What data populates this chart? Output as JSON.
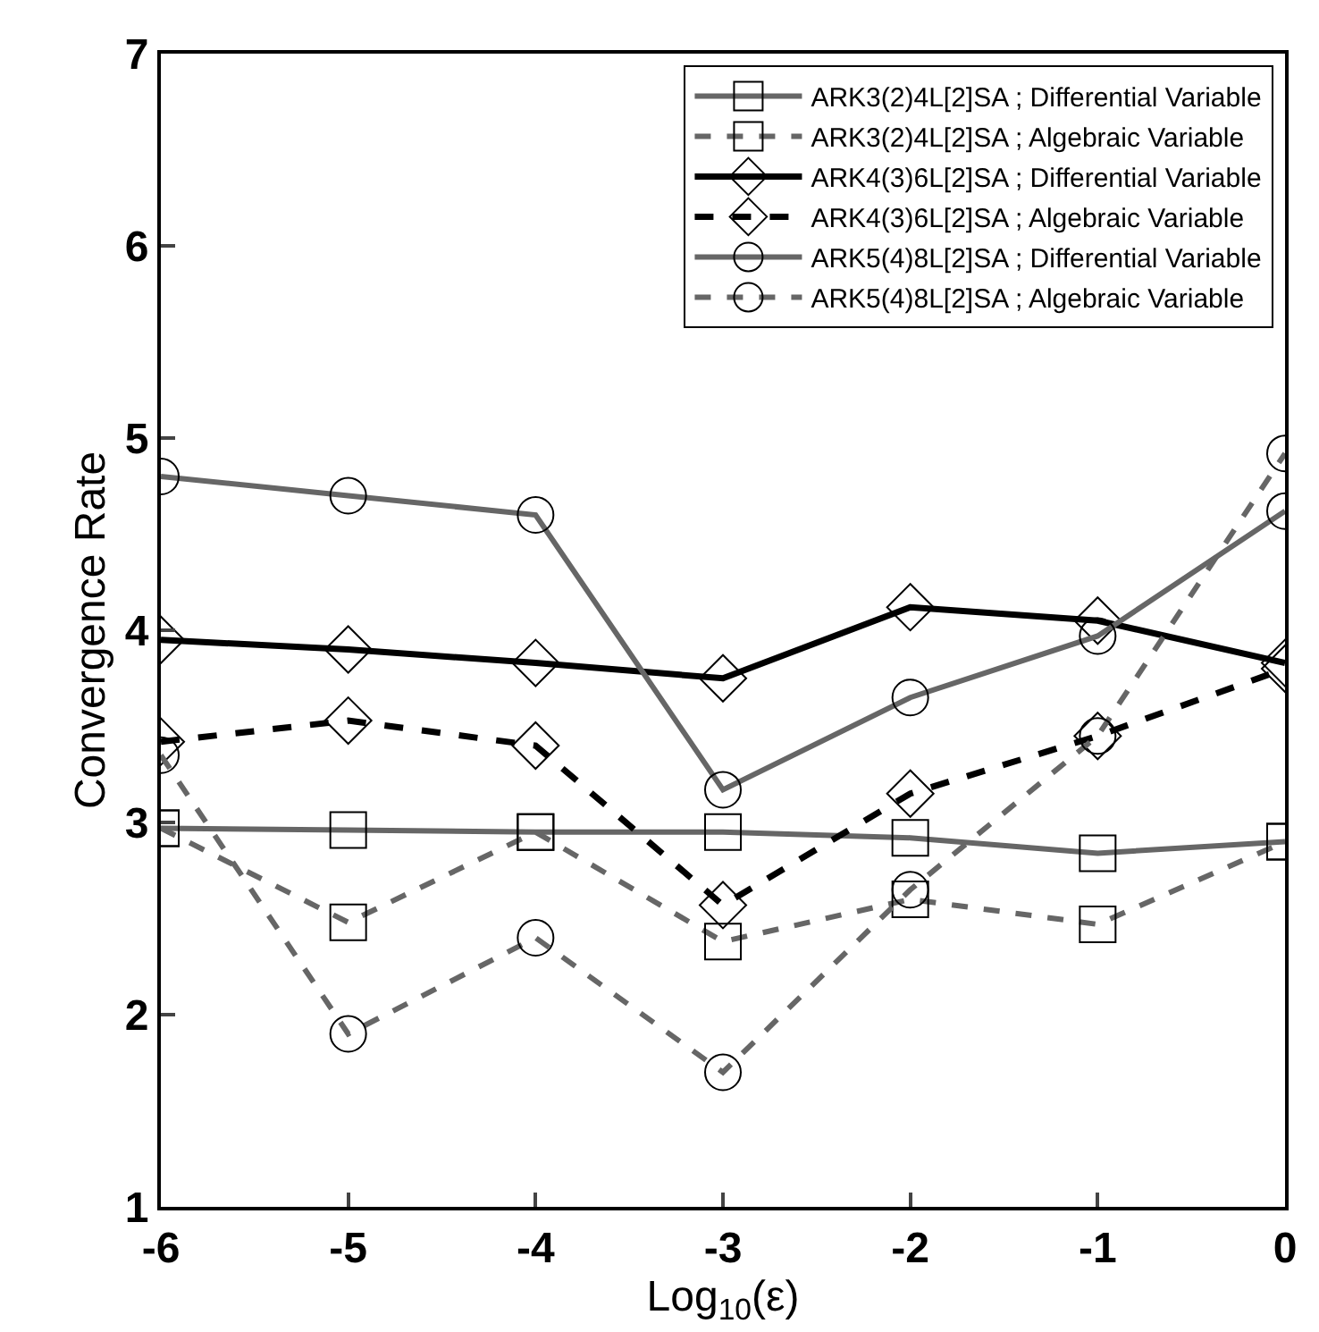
{
  "chart_data": {
    "type": "line",
    "xlabel": "Log$_{10}$(ε)",
    "ylabel": "Convergence Rate",
    "x": [
      -6,
      -5,
      -4,
      -3,
      -2,
      -1,
      0
    ],
    "xlim": [
      -6,
      0
    ],
    "xticks": [
      -6,
      -5,
      -4,
      -3,
      -2,
      -1,
      0
    ],
    "ylim": [
      1,
      7
    ],
    "yticks": [
      1,
      2,
      3,
      4,
      5,
      6,
      7
    ],
    "legend": "top right",
    "series": [
      {
        "name": "ARK3(2)4L[2]SA ; Differential Variable",
        "color": "#666666",
        "marker": "square",
        "line_style": "solid",
        "values": [
          2.97,
          2.96,
          2.95,
          2.95,
          2.92,
          2.84,
          2.9
        ]
      },
      {
        "name": "ARK3(2)4L[2]SA ; Algebraic Variable",
        "color": "#666666",
        "marker": "square",
        "line_style": "dashed",
        "values": [
          2.97,
          2.48,
          2.95,
          2.38,
          2.6,
          2.47,
          2.9
        ]
      },
      {
        "name": "ARK4(3)6L[2]SA ; Differential Variable",
        "color": "#000000",
        "marker": "diamond",
        "line_style": "solid",
        "values": [
          3.95,
          3.9,
          3.83,
          3.75,
          4.12,
          4.05,
          3.83
        ]
      },
      {
        "name": "ARK4(3)6L[2]SA ; Algebraic Variable",
        "color": "#000000",
        "marker": "diamond",
        "line_style": "dashed",
        "values": [
          3.42,
          3.53,
          3.4,
          2.57,
          3.15,
          3.45,
          3.8
        ]
      },
      {
        "name": "ARK5(4)8L[2]SA ; Differential Variable",
        "color": "#666666",
        "marker": "circle",
        "line_style": "solid",
        "values": [
          4.8,
          4.7,
          4.6,
          3.17,
          3.65,
          3.97,
          4.62
        ]
      },
      {
        "name": "ARK5(4)8L[2]SA ; Algebraic Variable",
        "color": "#666666",
        "marker": "circle",
        "line_style": "dashed",
        "values": [
          3.35,
          1.9,
          2.4,
          1.7,
          2.65,
          3.45,
          4.92
        ]
      }
    ]
  }
}
